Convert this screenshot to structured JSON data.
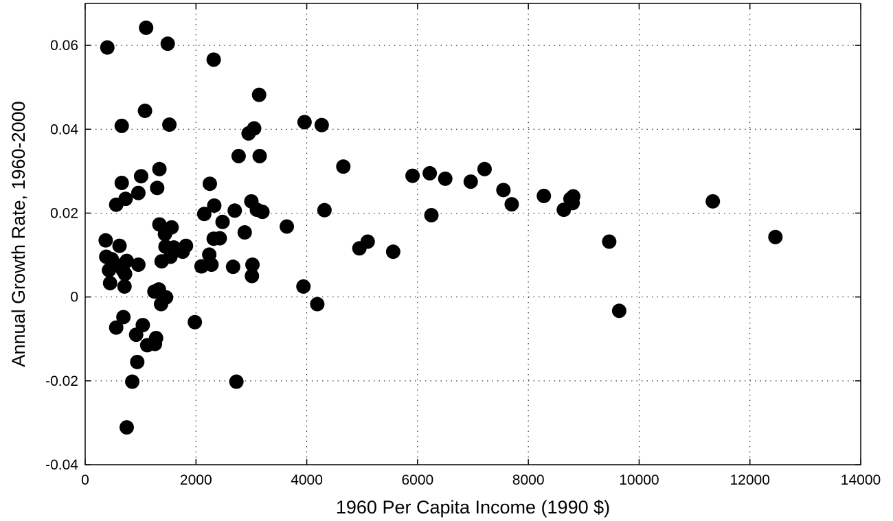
{
  "chart_data": {
    "type": "scatter",
    "title": "",
    "xlabel": "1960 Per Capita Income (1990 $)",
    "ylabel": "Annual Growth Rate, 1960-2000",
    "xlim": [
      0,
      14000
    ],
    "ylim": [
      -0.04,
      0.07
    ],
    "xticks": [
      0,
      2000,
      4000,
      6000,
      8000,
      10000,
      12000,
      14000
    ],
    "xtick_labels": [
      "0",
      "2000",
      "4000",
      "6000",
      "8000",
      "10000",
      "12000",
      "14000"
    ],
    "yticks": [
      -0.04,
      -0.02,
      0,
      0.02,
      0.04,
      0.06
    ],
    "ytick_labels": [
      "-0.04",
      "-0.02",
      "0",
      "0.02",
      "0.04",
      "0.06"
    ],
    "grid": true,
    "marker_color": "#000000",
    "series": [
      {
        "points": [
          [
            400,
            0.0595
          ],
          [
            1100,
            0.0642
          ],
          [
            1490,
            0.0604
          ],
          [
            2320,
            0.0566
          ],
          [
            1080,
            0.0444
          ],
          [
            660,
            0.0408
          ],
          [
            1520,
            0.0411
          ],
          [
            3140,
            0.0482
          ],
          [
            3050,
            0.0402
          ],
          [
            2950,
            0.039
          ],
          [
            3960,
            0.0417
          ],
          [
            4270,
            0.041
          ],
          [
            2770,
            0.0336
          ],
          [
            3150,
            0.0336
          ],
          [
            4660,
            0.0311
          ],
          [
            1340,
            0.0305
          ],
          [
            1010,
            0.0288
          ],
          [
            660,
            0.0272
          ],
          [
            1300,
            0.026
          ],
          [
            960,
            0.0248
          ],
          [
            730,
            0.0234
          ],
          [
            560,
            0.022
          ],
          [
            2250,
            0.027
          ],
          [
            2330,
            0.0218
          ],
          [
            3000,
            0.0228
          ],
          [
            3100,
            0.0208
          ],
          [
            3200,
            0.0203
          ],
          [
            4320,
            0.0207
          ],
          [
            2700,
            0.0206
          ],
          [
            2150,
            0.0198
          ],
          [
            2480,
            0.0179
          ],
          [
            1340,
            0.0173
          ],
          [
            1560,
            0.0166
          ],
          [
            3640,
            0.0168
          ],
          [
            1440,
            0.015
          ],
          [
            2880,
            0.0154
          ],
          [
            2320,
            0.0139
          ],
          [
            2430,
            0.014
          ],
          [
            370,
            0.0135
          ],
          [
            620,
            0.0122
          ],
          [
            1450,
            0.012
          ],
          [
            1600,
            0.0118
          ],
          [
            1820,
            0.0122
          ],
          [
            1760,
            0.0108
          ],
          [
            1540,
            0.0096
          ],
          [
            2240,
            0.0101
          ],
          [
            380,
            0.0096
          ],
          [
            480,
            0.009
          ],
          [
            750,
            0.0086
          ],
          [
            1380,
            0.0085
          ],
          [
            960,
            0.0077
          ],
          [
            2100,
            0.0073
          ],
          [
            2280,
            0.0077
          ],
          [
            2670,
            0.0072
          ],
          [
            3020,
            0.0077
          ],
          [
            430,
            0.0064
          ],
          [
            680,
            0.0064
          ],
          [
            640,
            0.0075
          ],
          [
            720,
            0.0055
          ],
          [
            3010,
            0.005
          ],
          [
            450,
            0.0033
          ],
          [
            710,
            0.0025
          ],
          [
            1250,
            0.0013
          ],
          [
            1330,
            0.0018
          ],
          [
            1460,
            -0.0001
          ],
          [
            1370,
            -0.0017
          ],
          [
            3940,
            0.0025
          ],
          [
            4190,
            -0.0017
          ],
          [
            690,
            -0.0048
          ],
          [
            1040,
            -0.0067
          ],
          [
            560,
            -0.0073
          ],
          [
            1980,
            -0.006
          ],
          [
            920,
            -0.009
          ],
          [
            1120,
            -0.0115
          ],
          [
            1260,
            -0.0112
          ],
          [
            1280,
            -0.0098
          ],
          [
            940,
            -0.0155
          ],
          [
            850,
            -0.0202
          ],
          [
            2730,
            -0.0202
          ],
          [
            750,
            -0.0311
          ],
          [
            5910,
            0.0289
          ],
          [
            6220,
            0.0295
          ],
          [
            6500,
            0.0282
          ],
          [
            6960,
            0.0275
          ],
          [
            7210,
            0.0305
          ],
          [
            7550,
            0.0255
          ],
          [
            7700,
            0.0221
          ],
          [
            8280,
            0.0241
          ],
          [
            8640,
            0.0208
          ],
          [
            8760,
            0.0234
          ],
          [
            8800,
            0.0224
          ],
          [
            8810,
            0.024
          ],
          [
            6250,
            0.0195
          ],
          [
            4950,
            0.0116
          ],
          [
            5100,
            0.0132
          ],
          [
            5560,
            0.0108
          ],
          [
            9460,
            0.0132
          ],
          [
            9640,
            -0.0033
          ],
          [
            11330,
            0.0228
          ],
          [
            12460,
            0.0143
          ]
        ]
      }
    ]
  }
}
